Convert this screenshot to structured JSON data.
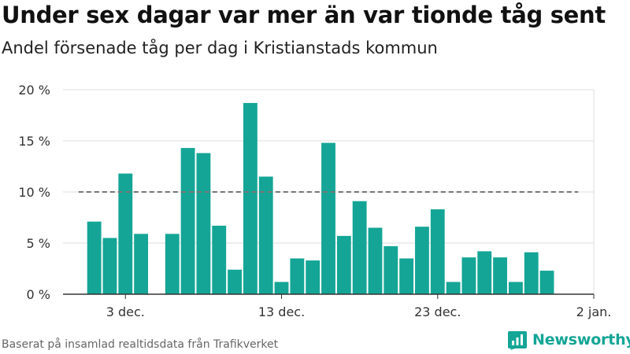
{
  "title": "Under sex dagar var mer än var tionde tåg sent",
  "subtitle": "Andel försenade tåg per dag i Kristianstads kommun",
  "footer": "Baserat på insamlad realtidsdata från Trafikverket",
  "brand": "Newsworthy",
  "colors": {
    "bar": "#14a596",
    "reference_line": "#777777",
    "grid": "#dddddd",
    "axis": "#333333",
    "brand": "#14a596"
  },
  "chart_data": {
    "type": "bar",
    "title": "Under sex dagar var mer än var tionde tåg sent",
    "subtitle": "Andel försenade tåg per dag i Kristianstads kommun",
    "ylim": [
      0,
      20
    ],
    "yticks": [
      0,
      5,
      10,
      15,
      20
    ],
    "ytick_labels": [
      "0 %",
      "5 %",
      "10 %",
      "15 %",
      "20 %"
    ],
    "xlim": [
      "2023-11-29",
      "2024-01-02"
    ],
    "xticks": [
      "2023-12-03",
      "2023-12-13",
      "2023-12-23",
      "2024-01-02"
    ],
    "xtick_labels": [
      "3 dec.",
      "13 dec.",
      "23 dec.",
      "2 jan."
    ],
    "grid": true,
    "reference_line": {
      "value": 10,
      "from": "2023-11-30",
      "to": "2024-01-01"
    },
    "dates": [
      "2023-12-01",
      "2023-12-02",
      "2023-12-03",
      "2023-12-04",
      "2023-12-05",
      "2023-12-06",
      "2023-12-07",
      "2023-12-08",
      "2023-12-09",
      "2023-12-10",
      "2023-12-11",
      "2023-12-12",
      "2023-12-13",
      "2023-12-14",
      "2023-12-15",
      "2023-12-16",
      "2023-12-17",
      "2023-12-18",
      "2023-12-19",
      "2023-12-20",
      "2023-12-21",
      "2023-12-22",
      "2023-12-23",
      "2023-12-24",
      "2023-12-25",
      "2023-12-26",
      "2023-12-27",
      "2023-12-28",
      "2023-12-29",
      "2023-12-30",
      "2023-12-31"
    ],
    "values": [
      7.1,
      5.5,
      11.8,
      5.9,
      null,
      5.9,
      14.3,
      13.8,
      6.7,
      2.4,
      18.7,
      11.5,
      1.2,
      3.5,
      3.3,
      14.8,
      5.7,
      9.1,
      6.5,
      4.7,
      3.5,
      6.6,
      8.3,
      1.2,
      3.6,
      4.2,
      3.6,
      1.2,
      4.1,
      2.3,
      null
    ]
  }
}
